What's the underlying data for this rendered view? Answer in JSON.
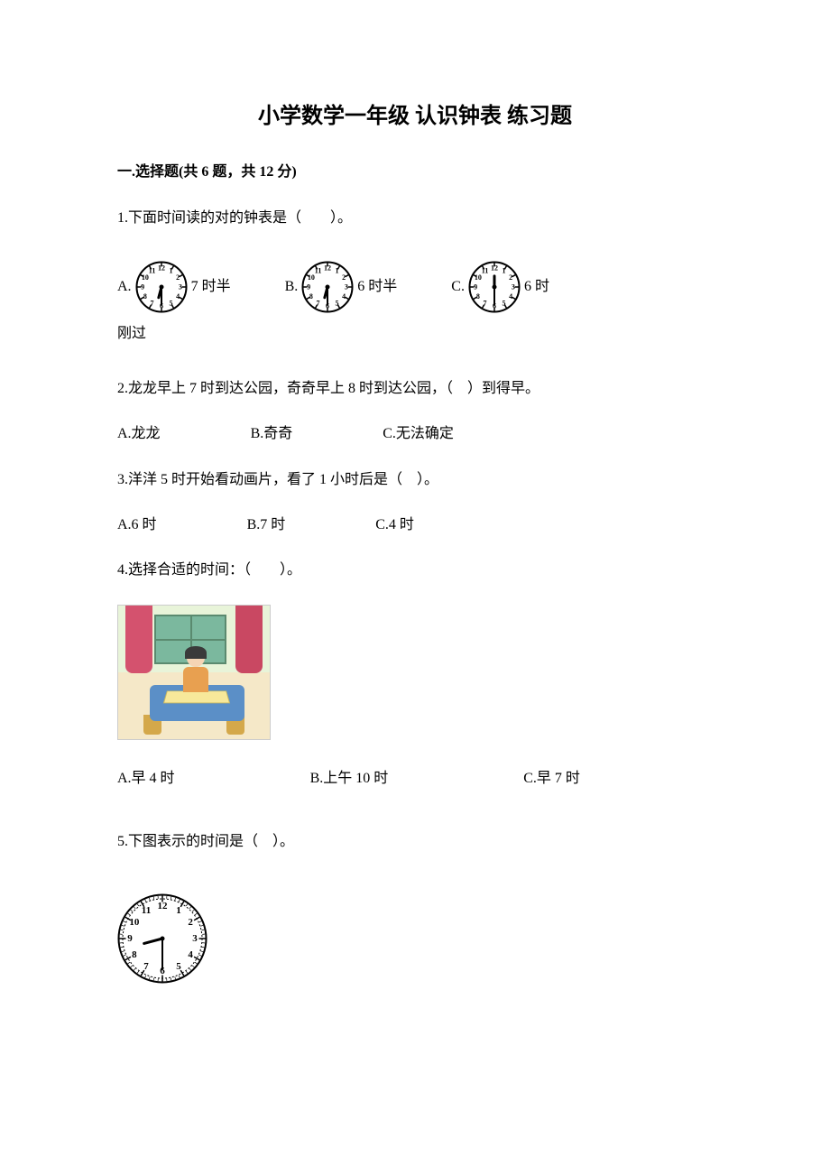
{
  "title": "小学数学一年级 认识钟表 练习题",
  "section1": {
    "header": "一.选择题(共 6 题，共 12 分)"
  },
  "q1": {
    "text": "1.下面时间读的对的钟表是（　　）。",
    "optA_prefix": "A.",
    "optA_label": "7 时半",
    "optA_clock": {
      "hour_angle": 195,
      "minute_angle": 180
    },
    "optB_prefix": "B.",
    "optB_label": "6 时半",
    "optB_clock": {
      "hour_angle": 195,
      "minute_angle": 180
    },
    "optC_prefix": "C.",
    "optC_label": "6 时",
    "optC_clock": {
      "hour_angle": 0,
      "minute_angle": 180
    },
    "extra_line": "刚过"
  },
  "q2": {
    "text": "2.龙龙早上 7 时到达公园，奇奇早上 8 时到达公园，（　）到得早。",
    "optA": "A.龙龙",
    "optB": "B.奇奇",
    "optC": "C.无法确定"
  },
  "q3": {
    "text": "3.洋洋 5 时开始看动画片，看了 1 小时后是（　）。",
    "optA": "A.6 时",
    "optB": "B.7 时",
    "optC": "C.4 时"
  },
  "q4": {
    "text": "4.选择合适的时间：（　　）。",
    "optA": "A.早 4 时",
    "optB": "B.上午 10 时",
    "optC": "C.早 7 时"
  },
  "q5": {
    "text": "5.下图表示的时间是（　）。",
    "clock": {
      "hour_angle": 255,
      "minute_angle": 180
    }
  },
  "clock_style": {
    "face_bg": "#ffffff",
    "border": "#000000",
    "tick": "#000000",
    "hand": "#000000",
    "number_fontsize": 8,
    "number_fontsize_large": 11
  }
}
